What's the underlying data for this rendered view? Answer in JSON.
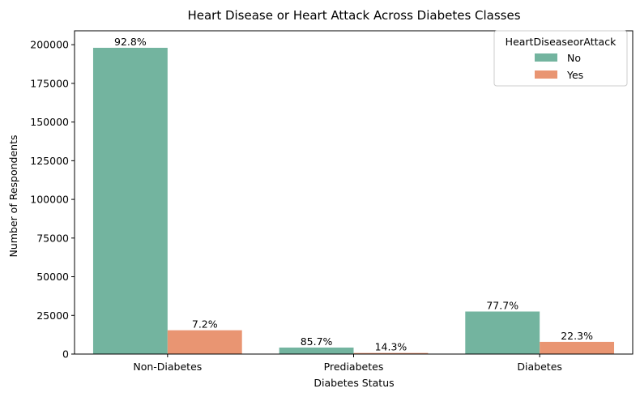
{
  "chart_data": {
    "type": "bar",
    "title": "Heart Disease or Heart Attack Across Diabetes Classes",
    "xlabel": "Diabetes Status",
    "ylabel": "Number of Respondents",
    "categories": [
      "Non-Diabetes",
      "Prediabetes",
      "Diabetes"
    ],
    "ylim": [
      0,
      209000
    ],
    "yticks": [
      0,
      25000,
      50000,
      75000,
      100000,
      125000,
      150000,
      175000,
      200000
    ],
    "grid": false,
    "legend": {
      "title": "HeartDiseaseorAttack",
      "placement": "top-right"
    },
    "series": [
      {
        "name": "No",
        "color": "#73b49f",
        "values": [
          198000,
          4200,
          27500
        ],
        "labels": [
          "92.8%",
          "85.7%",
          "77.7%"
        ]
      },
      {
        "name": "Yes",
        "color": "#e99572",
        "values": [
          15400,
          700,
          7900
        ],
        "labels": [
          "7.2%",
          "14.3%",
          "22.3%"
        ]
      }
    ]
  }
}
